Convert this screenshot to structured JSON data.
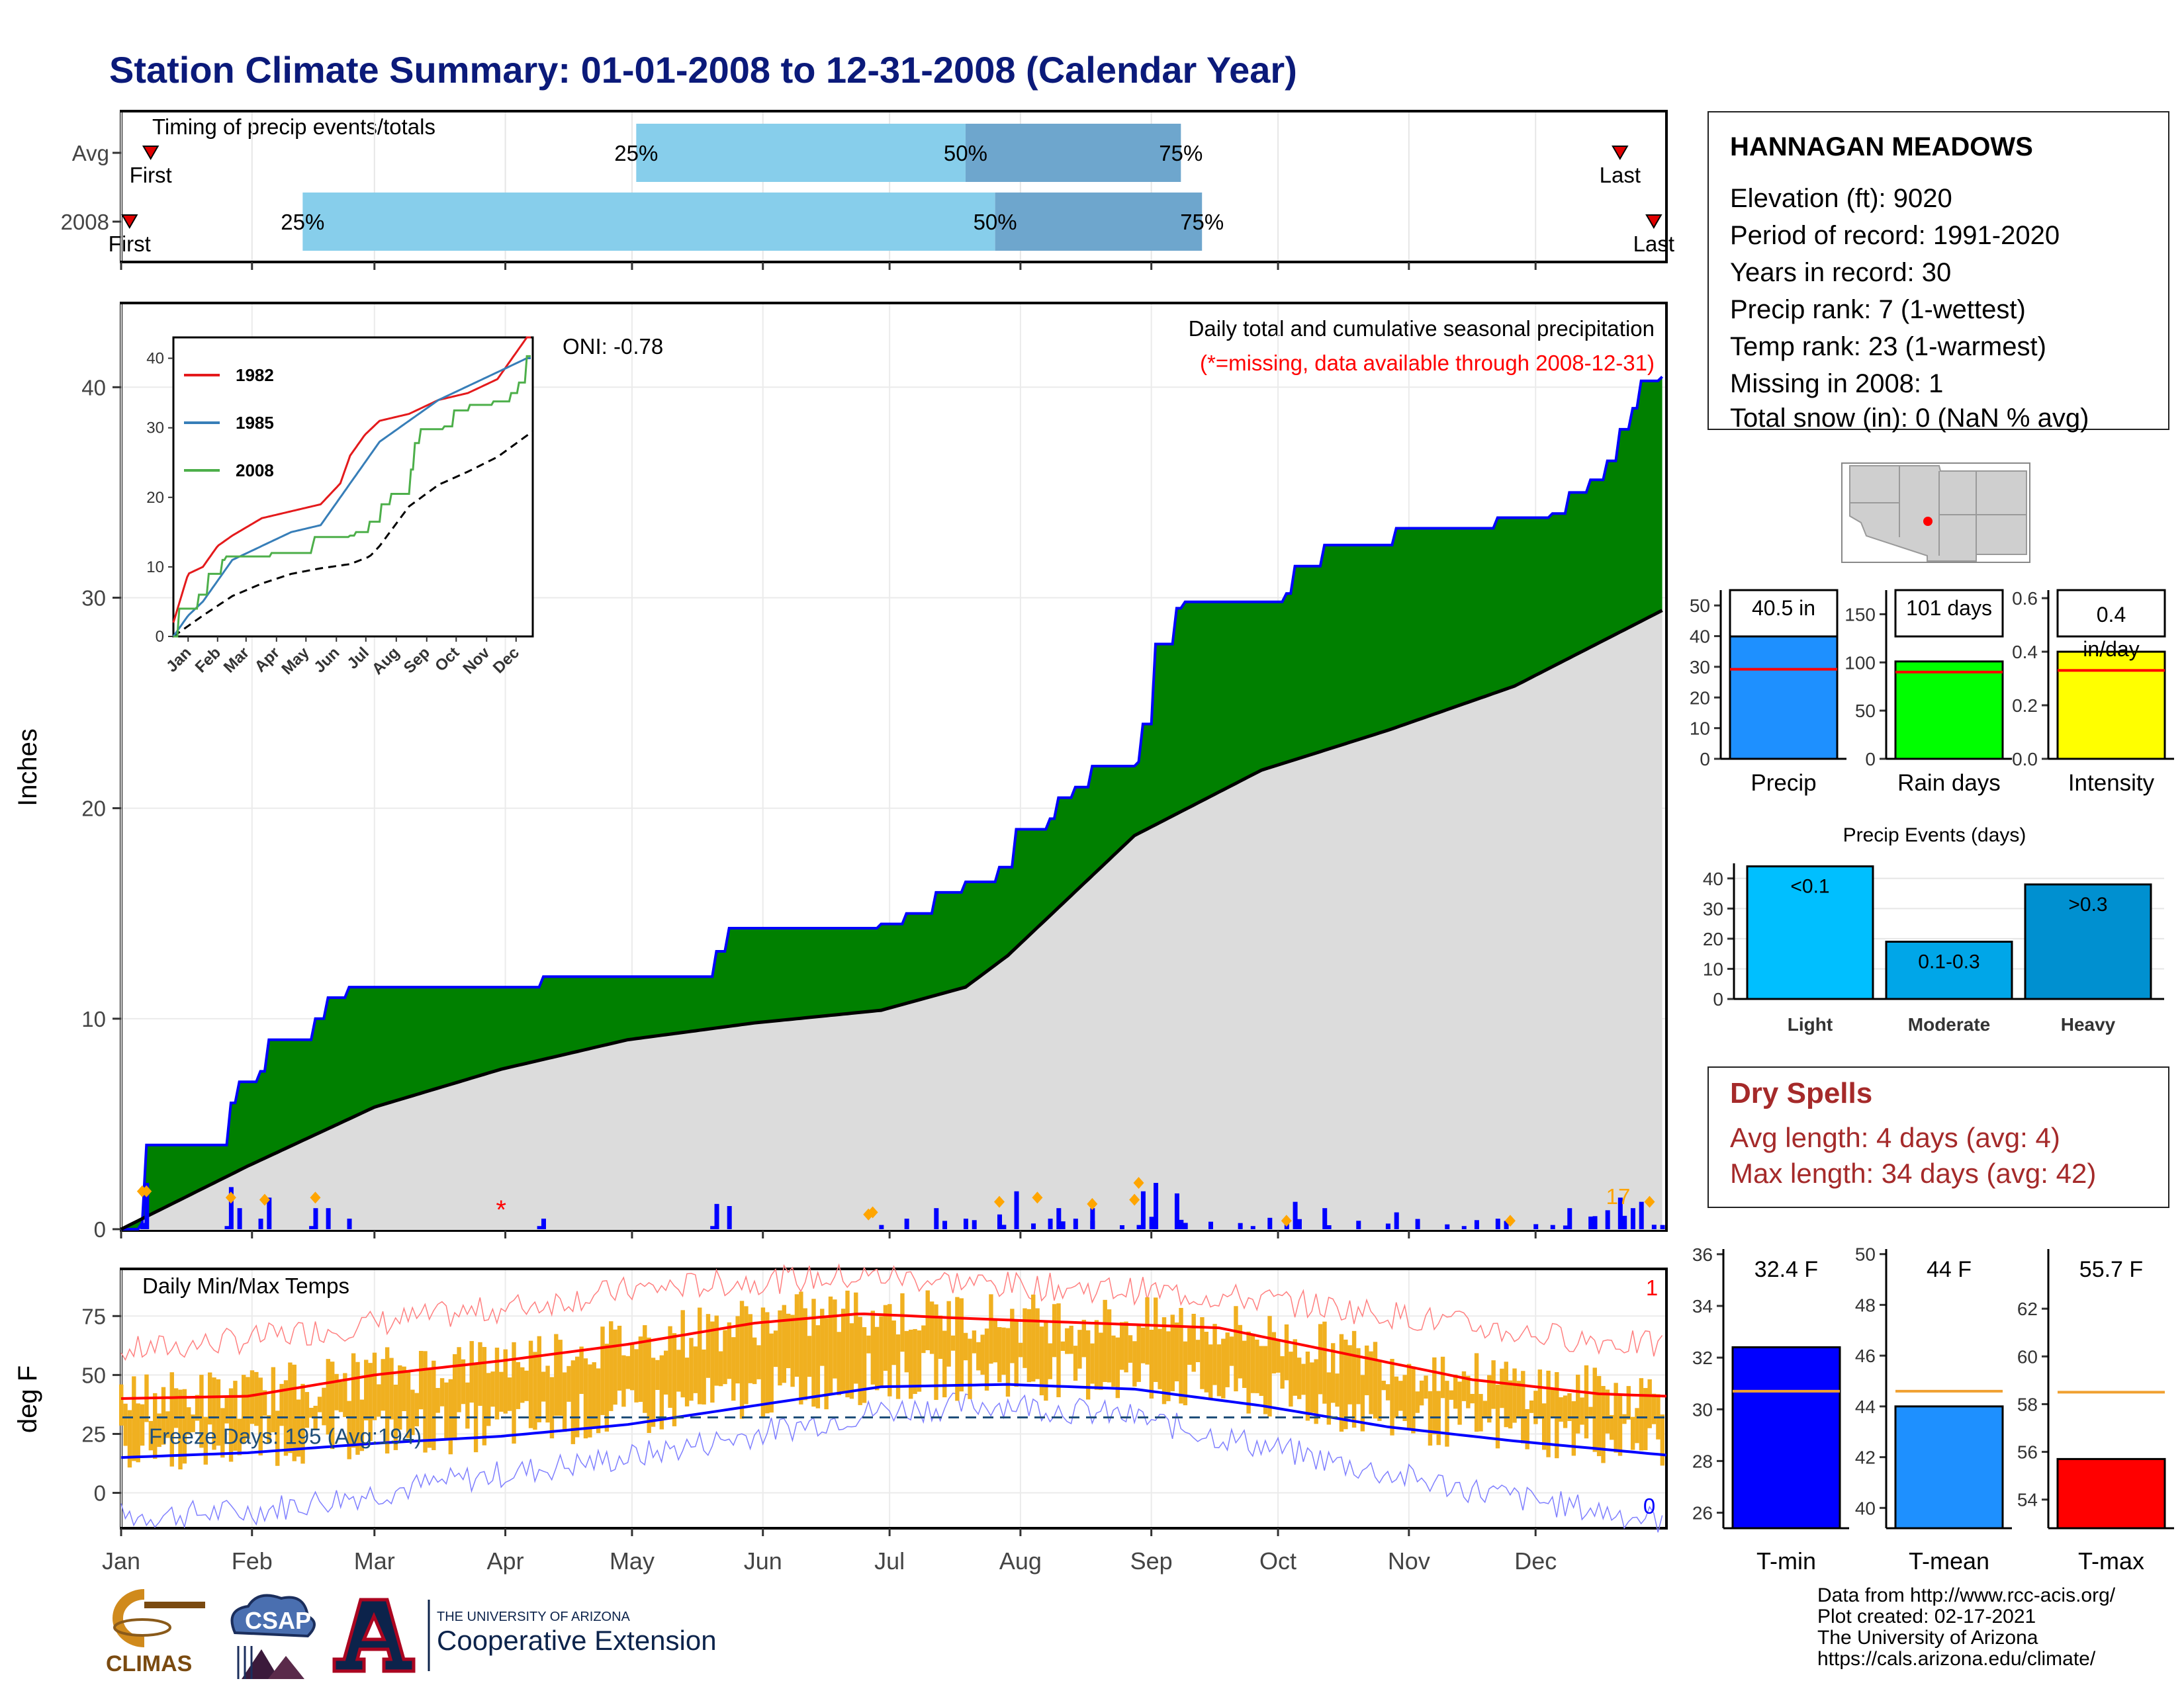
{
  "page": {
    "title": "Station Climate Summary: 01-01-2008 to 12-31-2008 (Calendar Year)",
    "colors": {
      "title": "#0b1a7a",
      "green": "#008000",
      "blue": "#0000ff",
      "orange": "#f0b020",
      "dryspell": "#a52a2a"
    }
  },
  "station": {
    "name": "HANNAGAN MEADOWS",
    "lines": [
      "Elevation (ft): 9020",
      "Period of record: 1991-2020",
      "Years in record: 30",
      "Precip rank: 7 (1-wettest)",
      "Temp rank: 23 (1-warmest)",
      "Missing in 2008: 1",
      "Total snow (in): 0 (NaN % avg)"
    ]
  },
  "dry_spells": {
    "title": "Dry Spells",
    "avg_line": "Avg length: 4 days (avg: 4)",
    "max_line": "Max length: 34 days (avg: 42)"
  },
  "credits": {
    "lines": [
      "Data from http://www.rcc-acis.org/",
      "Plot created: 02-17-2021",
      "The University of Arizona",
      "https://cals.arizona.edu/climate/"
    ]
  },
  "logos": {
    "climas": "CLIMAS",
    "csap": "CSAP",
    "ua_small": "THE UNIVERSITY OF ARIZONA",
    "coop": "Cooperative Extension"
  },
  "chart_data": [
    {
      "id": "timing",
      "type": "bar",
      "title": "Timing of precip events/totals",
      "rows": [
        {
          "label": "Avg",
          "q25": 122,
          "q50": 200,
          "q75": 251,
          "first": 7,
          "last": 355,
          "first_label": "First",
          "last_label": "Last",
          "q25_label": "25%",
          "q50_label": "50%",
          "q75_label": "75%"
        },
        {
          "label": "2008",
          "q25": 43,
          "q50": 207,
          "q75": 256,
          "first": 2,
          "last": 363,
          "first_label": "First",
          "last_label": "Last",
          "q25_label": "25%",
          "q50_label": "50%",
          "q75_label": "75%"
        }
      ],
      "xlim": [
        1,
        366
      ]
    },
    {
      "id": "precip",
      "type": "area",
      "title": "Daily total and cumulative seasonal precipitation",
      "subtitle": "(*=missing, data available through 2008-12-31)",
      "oni": "ONI: -0.78",
      "ylabel": "Inches",
      "ylim": [
        0,
        44
      ],
      "yticks": [
        0,
        10,
        20,
        30,
        40
      ],
      "months": [
        "Jan",
        "Feb",
        "Mar",
        "Apr",
        "May",
        "Jun",
        "Jul",
        "Aug",
        "Sep",
        "Oct",
        "Nov",
        "Dec"
      ],
      "cum_2008": [
        [
          0,
          0
        ],
        [
          5,
          0.3
        ],
        [
          6,
          4
        ],
        [
          25,
          4
        ],
        [
          26,
          6
        ],
        [
          28,
          7
        ],
        [
          33,
          7.5
        ],
        [
          35,
          9
        ],
        [
          45,
          9
        ],
        [
          46,
          10
        ],
        [
          49,
          11
        ],
        [
          54,
          11.5
        ],
        [
          99,
          11.5
        ],
        [
          100,
          12
        ],
        [
          140,
          12
        ],
        [
          141,
          13.2
        ],
        [
          144,
          14.3
        ],
        [
          180,
          14.5
        ],
        [
          186,
          15
        ],
        [
          193,
          16
        ],
        [
          200,
          16.5
        ],
        [
          208,
          17.2
        ],
        [
          212,
          19
        ],
        [
          220,
          19.5
        ],
        [
          222,
          20.5
        ],
        [
          226,
          21
        ],
        [
          230,
          22
        ],
        [
          241,
          22.2
        ],
        [
          242,
          24
        ],
        [
          245,
          27.8
        ],
        [
          250,
          29.5
        ],
        [
          252,
          29.8
        ],
        [
          268,
          29.8
        ],
        [
          276,
          30.2
        ],
        [
          278,
          31.5
        ],
        [
          285,
          32.5
        ],
        [
          300,
          32.5
        ],
        [
          302,
          33.3
        ],
        [
          318,
          33.3
        ],
        [
          326,
          33.8
        ],
        [
          339,
          34
        ],
        [
          343,
          35
        ],
        [
          348,
          35.6
        ],
        [
          352,
          36.5
        ],
        [
          355,
          38
        ],
        [
          358,
          39
        ],
        [
          360,
          40.3
        ],
        [
          365,
          40.5
        ]
      ],
      "cum_avg": [
        [
          0,
          0
        ],
        [
          30,
          3
        ],
        [
          60,
          5.8
        ],
        [
          90,
          7.6
        ],
        [
          120,
          9
        ],
        [
          150,
          9.8
        ],
        [
          180,
          10.4
        ],
        [
          200,
          11.5
        ],
        [
          210,
          13
        ],
        [
          240,
          18.7
        ],
        [
          270,
          21.8
        ],
        [
          300,
          23.7
        ],
        [
          330,
          25.8
        ],
        [
          366,
          29.5
        ]
      ],
      "daily_marks_days": [
        5,
        6,
        26,
        34,
        46,
        177,
        178,
        208,
        217,
        230,
        240,
        241,
        276,
        329,
        362
      ],
      "daily_marks_values": [
        1.8,
        1.8,
        1.5,
        1.4,
        1.5,
        0.7,
        0.8,
        1.3,
        1.5,
        1.2,
        1.4,
        2.2,
        0.4,
        0.4,
        1.3
      ],
      "missing_day": 90,
      "count_label": "17"
    },
    {
      "id": "inset",
      "type": "line",
      "ylim": [
        0,
        43
      ],
      "yticks": [
        0,
        10,
        20,
        30,
        40
      ],
      "months": [
        "Jan",
        "Feb",
        "Mar",
        "Apr",
        "May",
        "Jun",
        "Jul",
        "Aug",
        "Sep",
        "Oct",
        "Nov",
        "Dec"
      ],
      "series": [
        {
          "name": "1982",
          "color": "#e41a1c",
          "values": [
            [
              0,
              2
            ],
            [
              15,
              9
            ],
            [
              30,
              10
            ],
            [
              45,
              13
            ],
            [
              60,
              14.5
            ],
            [
              90,
              17
            ],
            [
              120,
              18
            ],
            [
              150,
              19
            ],
            [
              170,
              22
            ],
            [
              180,
              26
            ],
            [
              195,
              29
            ],
            [
              210,
              31
            ],
            [
              240,
              32
            ],
            [
              270,
              34
            ],
            [
              300,
              35
            ],
            [
              330,
              37
            ],
            [
              345,
              40
            ],
            [
              360,
              43
            ]
          ]
        },
        {
          "name": "1985",
          "color": "#377eb8",
          "values": [
            [
              0,
              0
            ],
            [
              15,
              3
            ],
            [
              30,
              5
            ],
            [
              45,
              8
            ],
            [
              60,
              11
            ],
            [
              90,
              13
            ],
            [
              120,
              15
            ],
            [
              150,
              16
            ],
            [
              170,
              20
            ],
            [
              190,
              24
            ],
            [
              210,
              28
            ],
            [
              240,
              31
            ],
            [
              270,
              34
            ],
            [
              300,
              36
            ],
            [
              330,
              38
            ],
            [
              360,
              40
            ]
          ]
        },
        {
          "name": "2008",
          "color": "#4daf4a",
          "values": [
            [
              0,
              0
            ],
            [
              6,
              4
            ],
            [
              26,
              6
            ],
            [
              35,
              9
            ],
            [
              49,
              11
            ],
            [
              54,
              11.5
            ],
            [
              100,
              12
            ],
            [
              141,
              13.2
            ],
            [
              144,
              14.3
            ],
            [
              180,
              14.5
            ],
            [
              186,
              15
            ],
            [
              200,
              16.5
            ],
            [
              212,
              19
            ],
            [
              222,
              20.5
            ],
            [
              242,
              24
            ],
            [
              245,
              27.8
            ],
            [
              252,
              29.8
            ],
            [
              276,
              30.2
            ],
            [
              285,
              32.5
            ],
            [
              302,
              33.3
            ],
            [
              326,
              33.8
            ],
            [
              343,
              35
            ],
            [
              352,
              36.5
            ],
            [
              360,
              40.3
            ],
            [
              365,
              40.5
            ]
          ]
        }
      ],
      "avg": [
        [
          0,
          0
        ],
        [
          30,
          3
        ],
        [
          60,
          5.8
        ],
        [
          90,
          7.6
        ],
        [
          120,
          9
        ],
        [
          150,
          9.8
        ],
        [
          180,
          10.4
        ],
        [
          200,
          11.5
        ],
        [
          210,
          13
        ],
        [
          240,
          18.7
        ],
        [
          270,
          21.8
        ],
        [
          300,
          23.7
        ],
        [
          330,
          25.8
        ],
        [
          366,
          29.5
        ]
      ]
    },
    {
      "id": "temps",
      "type": "line",
      "title": "Daily Min/Max Temps",
      "ylabel": "deg F",
      "ylim": [
        -15,
        95
      ],
      "yticks": [
        0,
        25,
        50,
        75
      ],
      "months": [
        "Jan",
        "Feb",
        "Mar",
        "Apr",
        "May",
        "Jun",
        "Jul",
        "Aug",
        "Sep",
        "Oct",
        "Nov",
        "Dec"
      ],
      "freeze_label": "Freeze Days: 195 (Avg:194)",
      "freeze_line": 32,
      "record_hi_count": "1",
      "record_lo_count": "0",
      "avg_max": [
        [
          0,
          40
        ],
        [
          30,
          41
        ],
        [
          60,
          50
        ],
        [
          90,
          56
        ],
        [
          120,
          63
        ],
        [
          150,
          72
        ],
        [
          175,
          76
        ],
        [
          200,
          74
        ],
        [
          230,
          72
        ],
        [
          260,
          70
        ],
        [
          290,
          59
        ],
        [
          320,
          48
        ],
        [
          350,
          42
        ],
        [
          366,
          41
        ]
      ],
      "avg_min": [
        [
          0,
          15
        ],
        [
          30,
          17
        ],
        [
          60,
          21
        ],
        [
          90,
          24
        ],
        [
          120,
          29
        ],
        [
          150,
          37
        ],
        [
          180,
          45
        ],
        [
          210,
          46
        ],
        [
          240,
          44
        ],
        [
          270,
          37
        ],
        [
          300,
          28
        ],
        [
          330,
          22
        ],
        [
          366,
          16
        ]
      ],
      "rec_max": [
        [
          0,
          60
        ],
        [
          30,
          65
        ],
        [
          60,
          72
        ],
        [
          90,
          78
        ],
        [
          120,
          86
        ],
        [
          150,
          90
        ],
        [
          180,
          92
        ],
        [
          210,
          88
        ],
        [
          240,
          86
        ],
        [
          270,
          82
        ],
        [
          300,
          76
        ],
        [
          330,
          68
        ],
        [
          366,
          62
        ]
      ],
      "rec_min": [
        [
          0,
          -10
        ],
        [
          30,
          -8
        ],
        [
          60,
          0
        ],
        [
          90,
          8
        ],
        [
          120,
          15
        ],
        [
          150,
          25
        ],
        [
          180,
          35
        ],
        [
          210,
          38
        ],
        [
          240,
          32
        ],
        [
          270,
          20
        ],
        [
          300,
          8
        ],
        [
          330,
          -2
        ],
        [
          366,
          -12
        ]
      ]
    },
    {
      "id": "precip_bars",
      "type": "bar",
      "bars": [
        {
          "category": "Precip",
          "value": 40.5,
          "avg": 29.2,
          "label": "40.5 in",
          "color": "#1e90ff",
          "ylim": [
            0,
            55
          ],
          "yticks": [
            0,
            10,
            20,
            30,
            40,
            50
          ]
        },
        {
          "category": "Rain days",
          "value": 101,
          "avg": 90,
          "label": "101 days",
          "color": "#00ff00",
          "ylim": [
            0,
            175
          ],
          "yticks": [
            0,
            50,
            100,
            150
          ]
        },
        {
          "category": "Intensity",
          "value": 0.4,
          "avg": 0.33,
          "label": "0.4 in/day",
          "color": "#ffff00",
          "ylim": [
            0,
            0.63
          ],
          "yticks": [
            0.0,
            0.2,
            0.4,
            0.6
          ]
        }
      ]
    },
    {
      "id": "events",
      "type": "bar",
      "title": "Precip Events (days)",
      "categories": [
        "Light",
        "Moderate",
        "Heavy"
      ],
      "values": [
        44,
        19,
        38
      ],
      "labels": [
        "<0.1",
        "0.1-0.3",
        ">0.3"
      ],
      "colors": [
        "#00bfff",
        "#00a6e8",
        "#0090d0"
      ],
      "ylim": [
        0,
        45
      ],
      "yticks": [
        0,
        10,
        20,
        30,
        40
      ]
    },
    {
      "id": "temp_bars",
      "type": "bar",
      "bars": [
        {
          "category": "T-min",
          "value": 32.4,
          "avg": 30.7,
          "label": "32.4 F",
          "color": "#0000ff",
          "ylim": [
            25.4,
            36.2
          ],
          "yticks": [
            26,
            28,
            30,
            32,
            34,
            36
          ]
        },
        {
          "category": "T-mean",
          "value": 44,
          "avg": 44.6,
          "label": "44 F",
          "color": "#1e90ff",
          "ylim": [
            39.2,
            50.2
          ],
          "yticks": [
            40,
            42,
            44,
            46,
            48,
            50
          ]
        },
        {
          "category": "T-max",
          "value": 55.7,
          "avg": 58.5,
          "label": "55.7 F",
          "color": "#ff0000",
          "ylim": [
            52.8,
            64.5
          ],
          "yticks": [
            54,
            56,
            58,
            60,
            62
          ]
        }
      ]
    }
  ]
}
